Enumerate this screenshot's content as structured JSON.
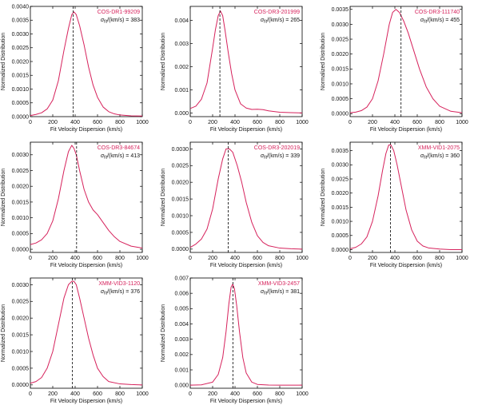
{
  "colors": {
    "curve": "#d6225c",
    "label": "#d6225c",
    "axis": "#000000",
    "fit_line": "#000000"
  },
  "common": {
    "xlabel": "Fit Velocity Dispersion (km/s)",
    "ylabel": "Normalized Distribution",
    "sigma_prefix": "σ",
    "sigma_sub": "fit",
    "sigma_suffix": "/(km/s) = "
  },
  "chart_data": [
    {
      "type": "line",
      "name": "COS-DR1-99209",
      "sigma_fit": "383",
      "xlim": [
        0,
        1000
      ],
      "ylim": [
        0,
        0.004
      ],
      "xticks": [
        0,
        200,
        400,
        600,
        800,
        1000
      ],
      "xtick_labels": [
        "0",
        "200",
        "400",
        "600",
        "800",
        "1000"
      ],
      "yticks": [
        0,
        0.0005,
        0.001,
        0.0015,
        0.002,
        0.0025,
        0.003,
        0.0035,
        0.004
      ],
      "ytick_labels": [
        "0.0000",
        "0.0005",
        "0.0010",
        "0.0015",
        "0.0020",
        "0.0025",
        "0.0030",
        "0.0035",
        "0.0040"
      ],
      "fit_line_x": 383,
      "x": [
        0,
        50,
        100,
        150,
        200,
        250,
        300,
        340,
        370,
        390,
        410,
        440,
        480,
        520,
        560,
        600,
        650,
        700,
        750,
        800,
        900,
        1000
      ],
      "y": [
        4e-05,
        8e-05,
        0.00014,
        0.00028,
        0.0006,
        0.0013,
        0.0024,
        0.0032,
        0.0037,
        0.0038,
        0.0037,
        0.0033,
        0.0026,
        0.0018,
        0.00115,
        0.0007,
        0.00035,
        0.00018,
        0.0001,
        6e-05,
        3e-05,
        2e-05
      ]
    },
    {
      "type": "line",
      "name": "COS-DR3-201999",
      "sigma_fit": "265",
      "xlim": [
        0,
        1000
      ],
      "ylim": [
        -0.00015,
        0.0046
      ],
      "xticks": [
        0,
        200,
        400,
        600,
        800,
        1000
      ],
      "xtick_labels": [
        "0",
        "200",
        "400",
        "600",
        "800",
        "1000"
      ],
      "yticks": [
        0,
        0.001,
        0.002,
        0.003,
        0.004
      ],
      "ytick_labels": [
        "0.000",
        "0.001",
        "0.002",
        "0.003",
        "0.004"
      ],
      "fit_line_x": 265,
      "x": [
        0,
        50,
        100,
        150,
        200,
        225,
        250,
        270,
        290,
        310,
        340,
        370,
        400,
        450,
        500,
        550,
        600,
        650,
        700,
        800,
        900,
        1000
      ],
      "y": [
        0.0002,
        0.0003,
        0.0006,
        0.0013,
        0.0028,
        0.0036,
        0.0042,
        0.0044,
        0.0042,
        0.0036,
        0.0026,
        0.0017,
        0.001,
        0.0004,
        0.00022,
        0.00016,
        0.00017,
        0.00015,
        0.0001,
        4e-05,
        2e-05,
        1e-05
      ]
    },
    {
      "type": "line",
      "name": "COS-DR3-111740",
      "sigma_fit": "455",
      "xlim": [
        0,
        1000
      ],
      "ylim": [
        -0.0001,
        0.0036
      ],
      "xticks": [
        0,
        200,
        400,
        600,
        800,
        1000
      ],
      "xtick_labels": [
        "0",
        "200",
        "400",
        "600",
        "800",
        "1000"
      ],
      "yticks": [
        0,
        0.0005,
        0.001,
        0.0015,
        0.002,
        0.0025,
        0.003,
        0.0035
      ],
      "ytick_labels": [
        "0.0000",
        "0.0005",
        "0.0010",
        "0.0015",
        "0.0020",
        "0.0025",
        "0.0030",
        "0.0035"
      ],
      "fit_line_x": 455,
      "x": [
        0,
        50,
        100,
        150,
        200,
        250,
        300,
        350,
        380,
        410,
        440,
        480,
        520,
        570,
        620,
        680,
        740,
        800,
        900,
        1000
      ],
      "y": [
        3e-05,
        5e-05,
        0.0001,
        0.00022,
        0.0005,
        0.0011,
        0.002,
        0.003,
        0.0034,
        0.0035,
        0.0034,
        0.0031,
        0.0027,
        0.0021,
        0.0015,
        0.0009,
        0.0005,
        0.00025,
        8e-05,
        3e-05
      ]
    },
    {
      "type": "line",
      "name": "COS-DR3-84674",
      "sigma_fit": "413",
      "xlim": [
        0,
        1000
      ],
      "ylim": [
        -0.0001,
        0.0034
      ],
      "xticks": [
        0,
        200,
        400,
        600,
        800,
        1000
      ],
      "xtick_labels": [
        "0",
        "200",
        "400",
        "600",
        "800",
        "1000"
      ],
      "yticks": [
        0,
        0.0005,
        0.001,
        0.0015,
        0.002,
        0.0025,
        0.003
      ],
      "ytick_labels": [
        "0.0000",
        "0.0005",
        "0.0010",
        "0.0015",
        "0.0020",
        "0.0025",
        "0.0030"
      ],
      "fit_line_x": 413,
      "x": [
        0,
        50,
        100,
        150,
        200,
        250,
        300,
        340,
        370,
        390,
        410,
        440,
        480,
        520,
        560,
        600,
        650,
        700,
        750,
        800,
        900,
        1000
      ],
      "y": [
        0.00015,
        0.0002,
        0.0003,
        0.0005,
        0.0009,
        0.0016,
        0.0025,
        0.0031,
        0.0033,
        0.0032,
        0.003,
        0.0025,
        0.0019,
        0.0015,
        0.00125,
        0.0011,
        0.00085,
        0.0006,
        0.0004,
        0.00025,
        0.0001,
        4e-05
      ]
    },
    {
      "type": "line",
      "name": "COS-DR3-202019",
      "sigma_fit": "339",
      "xlim": [
        0,
        1000
      ],
      "ylim": [
        -0.0001,
        0.0032
      ],
      "xticks": [
        0,
        200,
        400,
        600,
        800,
        1000
      ],
      "xtick_labels": [
        "0",
        "200",
        "400",
        "600",
        "800",
        "1000"
      ],
      "yticks": [
        0,
        0.0005,
        0.001,
        0.0015,
        0.002,
        0.0025,
        0.003
      ],
      "ytick_labels": [
        "0.0000",
        "0.0005",
        "0.0010",
        "0.0015",
        "0.0020",
        "0.0025",
        "0.0030"
      ],
      "fit_line_x": 339,
      "x": [
        0,
        50,
        100,
        150,
        200,
        250,
        290,
        320,
        350,
        380,
        420,
        460,
        500,
        550,
        600,
        650,
        700,
        800,
        900,
        1000
      ],
      "y": [
        5e-05,
        0.00015,
        0.0003,
        0.0006,
        0.0012,
        0.0021,
        0.0027,
        0.003,
        0.003,
        0.0029,
        0.0025,
        0.002,
        0.0014,
        0.0008,
        0.0004,
        0.0002,
        0.0001,
        3e-05,
        1e-05,
        0.0
      ]
    },
    {
      "type": "line",
      "name": "XMM-VID1-2075",
      "sigma_fit": "360",
      "xlim": [
        0,
        1000
      ],
      "ylim": [
        -0.0001,
        0.0038
      ],
      "xticks": [
        0,
        200,
        400,
        600,
        800,
        1000
      ],
      "xtick_labels": [
        "0",
        "200",
        "400",
        "600",
        "800",
        "1000"
      ],
      "yticks": [
        0,
        0.0005,
        0.001,
        0.0015,
        0.002,
        0.0025,
        0.003,
        0.0035
      ],
      "ytick_labels": [
        "0.0000",
        "0.0005",
        "0.0010",
        "0.0015",
        "0.0020",
        "0.0025",
        "0.0030",
        "0.0035"
      ],
      "fit_line_x": 360,
      "x": [
        0,
        50,
        100,
        150,
        200,
        250,
        290,
        320,
        345,
        365,
        390,
        420,
        460,
        500,
        550,
        600,
        650,
        700,
        800,
        900,
        1000
      ],
      "y": [
        3e-05,
        8e-05,
        0.0002,
        0.00045,
        0.001,
        0.0019,
        0.0028,
        0.0034,
        0.0037,
        0.0037,
        0.0035,
        0.003,
        0.0022,
        0.0014,
        0.0007,
        0.0003,
        0.00013,
        6e-05,
        2e-05,
        0.0,
        0.0
      ]
    },
    {
      "type": "line",
      "name": "XMM-VID3-1120",
      "sigma_fit": "376",
      "xlim": [
        0,
        1000
      ],
      "ylim": [
        -0.0001,
        0.0032
      ],
      "xticks": [
        0,
        200,
        400,
        600,
        800,
        1000
      ],
      "xtick_labels": [
        "0",
        "200",
        "400",
        "600",
        "800",
        "1000"
      ],
      "yticks": [
        0,
        0.0005,
        0.001,
        0.0015,
        0.002,
        0.0025,
        0.003
      ],
      "ytick_labels": [
        "0.0000",
        "0.0005",
        "0.0010",
        "0.0015",
        "0.0020",
        "0.0025",
        "0.0030"
      ],
      "fit_line_x": 376,
      "x": [
        0,
        50,
        100,
        150,
        200,
        250,
        300,
        340,
        370,
        390,
        410,
        440,
        480,
        520,
        560,
        600,
        650,
        700,
        800,
        900,
        1000
      ],
      "y": [
        5e-05,
        0.0001,
        0.00022,
        0.0005,
        0.001,
        0.0018,
        0.0026,
        0.003,
        0.0031,
        0.0031,
        0.003,
        0.0026,
        0.002,
        0.0014,
        0.0009,
        0.0005,
        0.00025,
        0.0001,
        3e-05,
        1e-05,
        0.0
      ]
    },
    {
      "type": "line",
      "name": "XMM-VID3-2457",
      "sigma_fit": "381",
      "xlim": [
        0,
        1000
      ],
      "ylim": [
        -0.0002,
        0.007
      ],
      "xticks": [
        0,
        200,
        400,
        600,
        800,
        1000
      ],
      "xtick_labels": [
        "0",
        "200",
        "400",
        "600",
        "800",
        "1000"
      ],
      "yticks": [
        0,
        0.001,
        0.002,
        0.003,
        0.004,
        0.005,
        0.006,
        0.007
      ],
      "ytick_labels": [
        "0.000",
        "0.001",
        "0.002",
        "0.003",
        "0.004",
        "0.005",
        "0.006",
        "0.007"
      ],
      "fit_line_x": 381,
      "x": [
        0,
        100,
        200,
        250,
        290,
        320,
        345,
        365,
        380,
        395,
        415,
        440,
        470,
        500,
        550,
        600,
        700,
        800,
        1000
      ],
      "y": [
        0.0,
        2e-05,
        0.0002,
        0.0007,
        0.0018,
        0.0035,
        0.0053,
        0.0064,
        0.0066,
        0.0063,
        0.0052,
        0.0035,
        0.0018,
        0.0008,
        0.0002,
        5e-05,
        1e-05,
        0.0,
        0.0
      ]
    }
  ]
}
